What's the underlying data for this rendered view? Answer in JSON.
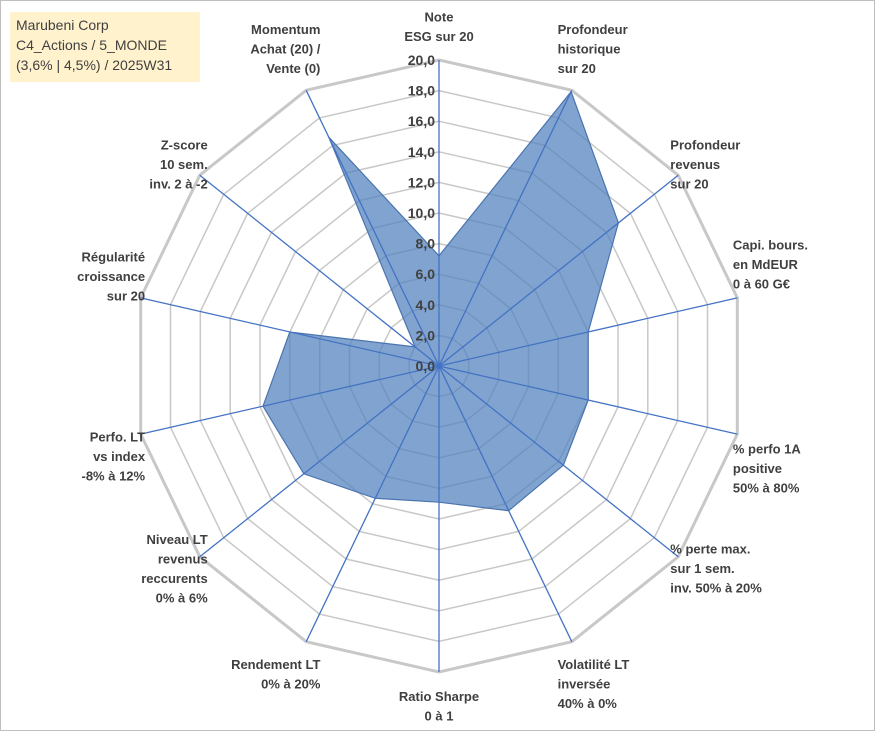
{
  "title_box": {
    "line1": "Marubeni Corp",
    "line2": "C4_Actions / 5_MONDE",
    "line3": "(3,6% | 4,5%) / 2025W31",
    "background": "#fff2cc"
  },
  "chart_data": {
    "type": "radar",
    "rlim": [
      0,
      20
    ],
    "tick_labels": [
      "0,0",
      "2,0",
      "4,0",
      "6,0",
      "8,0",
      "10,0",
      "12,0",
      "14,0",
      "16,0",
      "18,0",
      "20,0"
    ],
    "grid": true,
    "series_color": "#4f81bd",
    "spoke_color": "#4472c4",
    "grid_color": "#c8c8c8",
    "categories": [
      {
        "lines": [
          "Note",
          "ESG sur 20"
        ]
      },
      {
        "lines": [
          "Profondeur",
          "historique",
          "sur 20"
        ]
      },
      {
        "lines": [
          "Profondeur",
          "revenus",
          "sur 20"
        ]
      },
      {
        "lines": [
          "Capi. bours.",
          "en MdEUR",
          "0 à 60 G€"
        ]
      },
      {
        "lines": [
          "% perfo 1A",
          "positive",
          "50% à 80%"
        ]
      },
      {
        "lines": [
          "% perte max.",
          "sur 1 sem.",
          "inv. 50% à 20%"
        ]
      },
      {
        "lines": [
          "Volatilité LT",
          "inversée",
          "40% à 0%"
        ]
      },
      {
        "lines": [
          "Ratio Sharpe",
          "0 à 1"
        ]
      },
      {
        "lines": [
          "Rendement LT",
          "0% à 20%"
        ]
      },
      {
        "lines": [
          "Niveau LT",
          "revenus",
          "reccurents",
          "0% à 6%"
        ]
      },
      {
        "lines": [
          "Perfo. LT",
          "vs index",
          "-8% à 12%"
        ]
      },
      {
        "lines": [
          "Régularité",
          "croissance",
          "sur 20"
        ]
      },
      {
        "lines": [
          "Z-score",
          "10 sem.",
          "inv. 2 à -2"
        ]
      },
      {
        "lines": [
          "Momentum",
          "Achat (20) /",
          "Vente (0)"
        ]
      }
    ],
    "values": [
      7.2,
      19.9,
      15.0,
      10.0,
      10.0,
      10.4,
      10.5,
      8.9,
      9.6,
      11.3,
      11.8,
      10.0,
      2.0,
      16.6
    ]
  }
}
